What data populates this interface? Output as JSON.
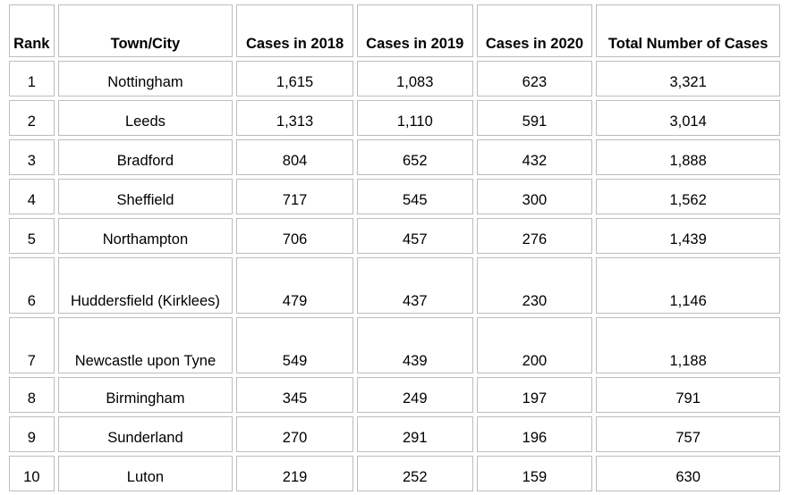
{
  "table": {
    "headers": [
      "Rank",
      "Town/City",
      "Cases in 2018",
      "Cases in 2019",
      "Cases in 2020",
      "Total Number of Cases"
    ],
    "rows": [
      [
        "1",
        "Nottingham",
        "1,615",
        "1,083",
        "623",
        "3,321"
      ],
      [
        "2",
        "Leeds",
        "1,313",
        "1,110",
        "591",
        "3,014"
      ],
      [
        "3",
        "Bradford",
        "804",
        "652",
        "432",
        "1,888"
      ],
      [
        "4",
        "Sheffield",
        "717",
        "545",
        "300",
        "1,562"
      ],
      [
        "5",
        "Northampton",
        "706",
        "457",
        "276",
        "1,439"
      ],
      [
        "6",
        "Huddersfield (Kirklees)",
        "479",
        "437",
        "230",
        "1,146"
      ],
      [
        "7",
        "Newcastle upon Tyne",
        "549",
        "439",
        "200",
        "1,188"
      ],
      [
        "8",
        "Birmingham",
        "345",
        "249",
        "197",
        "791"
      ],
      [
        "9",
        "Sunderland",
        "270",
        "291",
        "196",
        "757"
      ],
      [
        "10",
        "Luton",
        "219",
        "252",
        "159",
        "630"
      ]
    ]
  }
}
